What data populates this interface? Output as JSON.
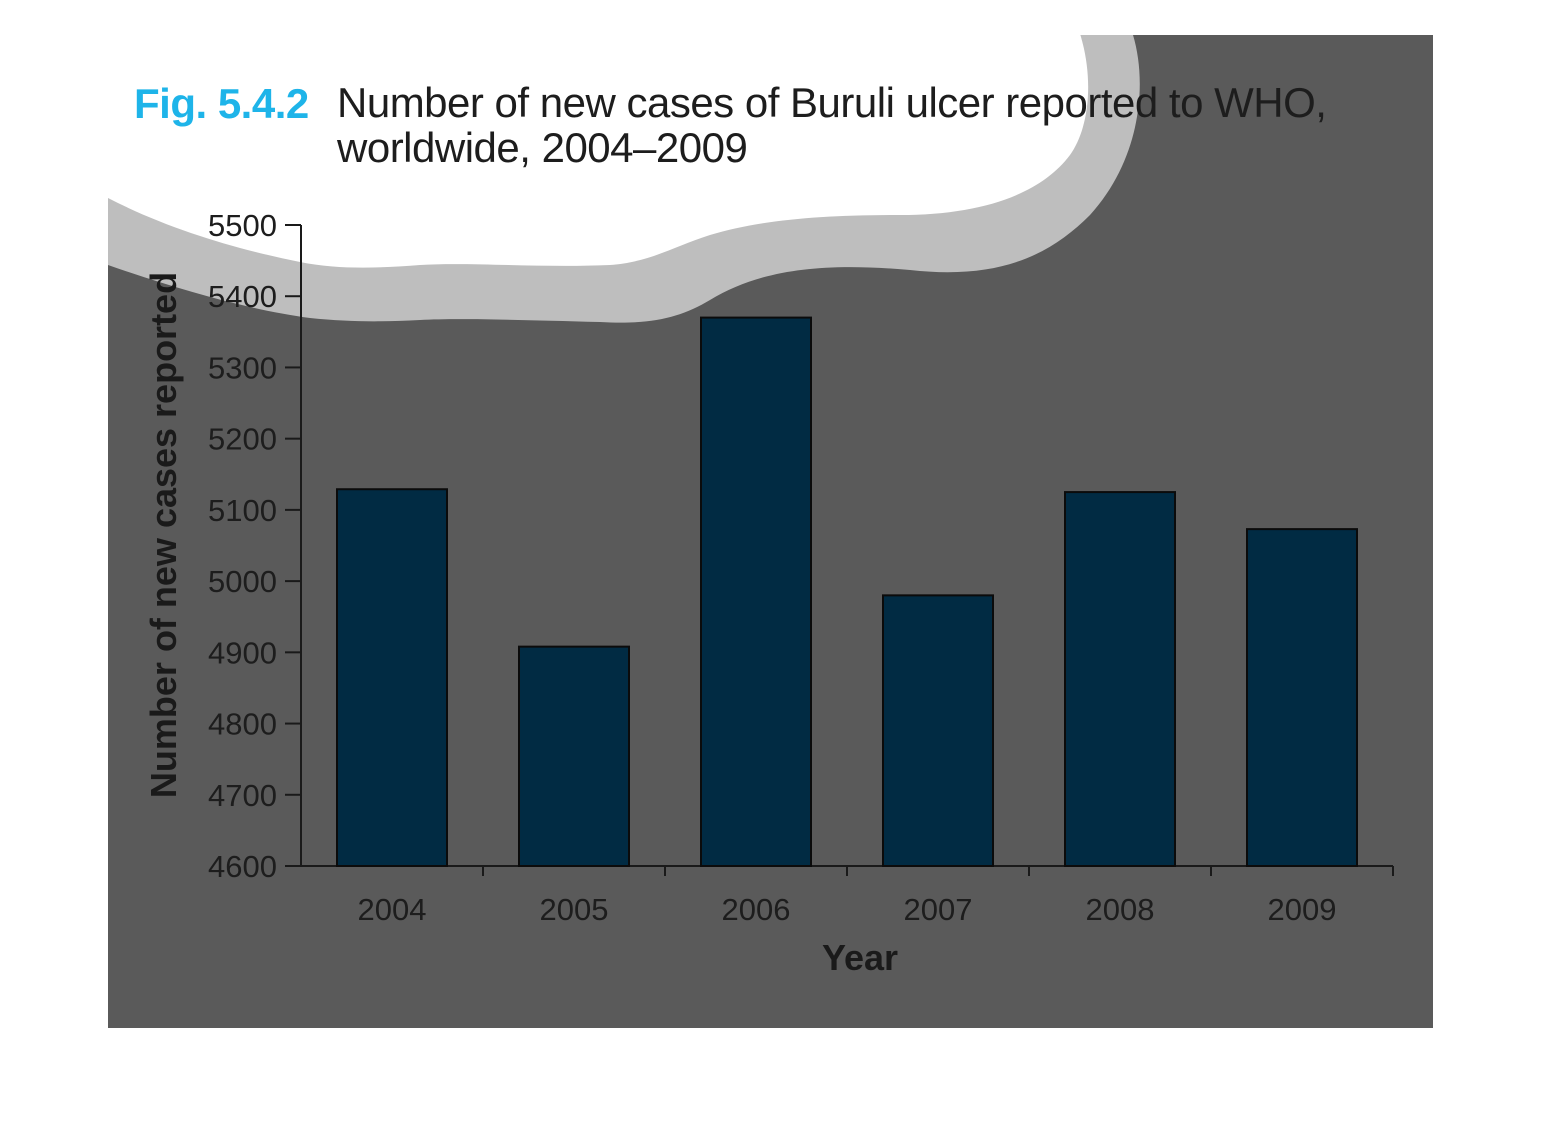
{
  "figure": {
    "label": "Fig. 5.4.2",
    "title": "Number of new cases of Buruli ulcer reported to WHO, worldwide, 2004–2009"
  },
  "chart_data": {
    "type": "bar",
    "title": "Number of new cases of Buruli ulcer reported to WHO, worldwide, 2004–2009",
    "xlabel": "Year",
    "ylabel": "Number of new cases reported",
    "categories": [
      "2004",
      "2005",
      "2006",
      "2007",
      "2008",
      "2009"
    ],
    "values": [
      5129,
      4908,
      5370,
      4980,
      5125,
      5073
    ],
    "ylim": [
      4600,
      5500
    ],
    "yticks": [
      4600,
      4700,
      4800,
      4900,
      5000,
      5100,
      5200,
      5300,
      5400,
      5500
    ],
    "grid": false,
    "legend": "none",
    "colors": {
      "bar": "#012b43",
      "plot_background": "#5a5a5a",
      "torn_edge": "#bebebe",
      "axis": "#1a1a1a",
      "text": "#1d1d1d",
      "accent": "#1eb4e9"
    }
  }
}
